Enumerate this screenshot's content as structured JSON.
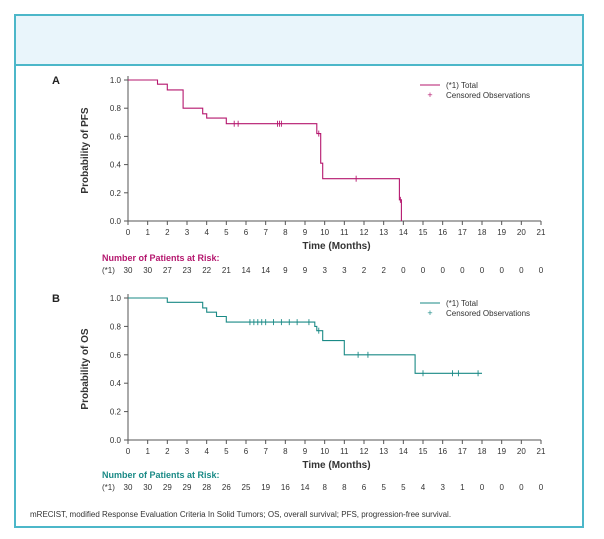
{
  "footnote": "mRECIST, modified Response Evaluation Criteria In Solid Tumors; OS, overall survival; PFS, progression-free survival.",
  "chart_data": [
    {
      "type": "line",
      "panel_label": "A",
      "ylabel": "Probability of PFS",
      "xlabel": "Time (Months)",
      "xlim": [
        0,
        21
      ],
      "ylim": [
        0,
        1
      ],
      "x_ticks": [
        0,
        1,
        2,
        3,
        4,
        5,
        6,
        7,
        8,
        9,
        10,
        11,
        12,
        13,
        14,
        15,
        16,
        17,
        18,
        19,
        20,
        21
      ],
      "y_ticks": [
        0.0,
        0.2,
        0.4,
        0.6,
        0.8,
        1.0
      ],
      "y_tick_labels": [
        "0.0",
        "0.2",
        "0.4",
        "0.6",
        "0.8",
        "1.0"
      ],
      "color": "#b5176e",
      "series": [
        {
          "name": "(*1) Total",
          "step_points": [
            [
              0,
              1.0
            ],
            [
              1.5,
              1.0
            ],
            [
              1.5,
              0.97
            ],
            [
              2.0,
              0.97
            ],
            [
              2.0,
              0.93
            ],
            [
              2.8,
              0.93
            ],
            [
              2.8,
              0.8
            ],
            [
              3.8,
              0.8
            ],
            [
              3.8,
              0.76
            ],
            [
              4.0,
              0.76
            ],
            [
              4.0,
              0.73
            ],
            [
              5.0,
              0.73
            ],
            [
              5.0,
              0.69
            ],
            [
              9.6,
              0.69
            ],
            [
              9.6,
              0.62
            ],
            [
              9.8,
              0.62
            ],
            [
              9.8,
              0.41
            ],
            [
              9.9,
              0.41
            ],
            [
              9.9,
              0.3
            ],
            [
              13.8,
              0.3
            ],
            [
              13.8,
              0.15
            ],
            [
              13.9,
              0.15
            ],
            [
              13.9,
              0.0
            ]
          ]
        }
      ],
      "censored_label": "Censored Observations",
      "censored": [
        [
          5.4,
          0.69
        ],
        [
          5.6,
          0.69
        ],
        [
          7.6,
          0.69
        ],
        [
          7.7,
          0.69
        ],
        [
          7.8,
          0.69
        ],
        [
          9.7,
          0.62
        ],
        [
          11.6,
          0.3
        ],
        [
          13.85,
          0.15
        ]
      ],
      "risk_table": {
        "title": "Number of Patients at Risk:",
        "group_label": "(*1)",
        "counts": [
          "30",
          "30",
          "27",
          "23",
          "22",
          "21",
          "14",
          "14",
          "9",
          "9",
          "3",
          "3",
          "2",
          "2",
          "0",
          "0",
          "0",
          "0",
          "0",
          "0",
          "0",
          "0"
        ]
      },
      "legend_position": "top-right"
    },
    {
      "type": "line",
      "panel_label": "B",
      "ylabel": "Probability of OS",
      "xlabel": "Time (Months)",
      "xlim": [
        0,
        21
      ],
      "ylim": [
        0,
        1
      ],
      "x_ticks": [
        0,
        1,
        2,
        3,
        4,
        5,
        6,
        7,
        8,
        9,
        10,
        11,
        12,
        13,
        14,
        15,
        16,
        17,
        18,
        19,
        20,
        21
      ],
      "y_ticks": [
        0.0,
        0.2,
        0.4,
        0.6,
        0.8,
        1.0
      ],
      "y_tick_labels": [
        "0.0",
        "0.2",
        "0.4",
        "0.6",
        "0.8",
        "1.0"
      ],
      "color": "#1a8a86",
      "series": [
        {
          "name": "(*1) Total",
          "step_points": [
            [
              0,
              1.0
            ],
            [
              2.0,
              1.0
            ],
            [
              2.0,
              0.97
            ],
            [
              3.8,
              0.97
            ],
            [
              3.8,
              0.93
            ],
            [
              4.0,
              0.93
            ],
            [
              4.0,
              0.9
            ],
            [
              4.5,
              0.9
            ],
            [
              4.5,
              0.87
            ],
            [
              5.0,
              0.87
            ],
            [
              5.0,
              0.83
            ],
            [
              9.5,
              0.83
            ],
            [
              9.5,
              0.8
            ],
            [
              9.6,
              0.8
            ],
            [
              9.6,
              0.77
            ],
            [
              9.9,
              0.77
            ],
            [
              9.9,
              0.7
            ],
            [
              11.0,
              0.7
            ],
            [
              11.0,
              0.6
            ],
            [
              14.6,
              0.6
            ],
            [
              14.6,
              0.47
            ],
            [
              18.0,
              0.47
            ]
          ]
        }
      ],
      "censored_label": "Censored Observations",
      "censored": [
        [
          6.2,
          0.83
        ],
        [
          6.4,
          0.83
        ],
        [
          6.6,
          0.83
        ],
        [
          6.8,
          0.83
        ],
        [
          7.0,
          0.83
        ],
        [
          7.4,
          0.83
        ],
        [
          7.8,
          0.83
        ],
        [
          8.2,
          0.83
        ],
        [
          8.6,
          0.83
        ],
        [
          9.2,
          0.83
        ],
        [
          9.7,
          0.77
        ],
        [
          11.7,
          0.6
        ],
        [
          12.2,
          0.6
        ],
        [
          15.0,
          0.47
        ],
        [
          16.5,
          0.47
        ],
        [
          16.8,
          0.47
        ],
        [
          17.8,
          0.47
        ]
      ],
      "risk_table": {
        "title": "Number of Patients at Risk:",
        "group_label": "(*1)",
        "counts": [
          "30",
          "30",
          "29",
          "29",
          "28",
          "26",
          "25",
          "19",
          "16",
          "14",
          "8",
          "8",
          "6",
          "5",
          "5",
          "4",
          "3",
          "1",
          "0",
          "0",
          "0",
          "0"
        ]
      },
      "legend_position": "top-right"
    }
  ]
}
